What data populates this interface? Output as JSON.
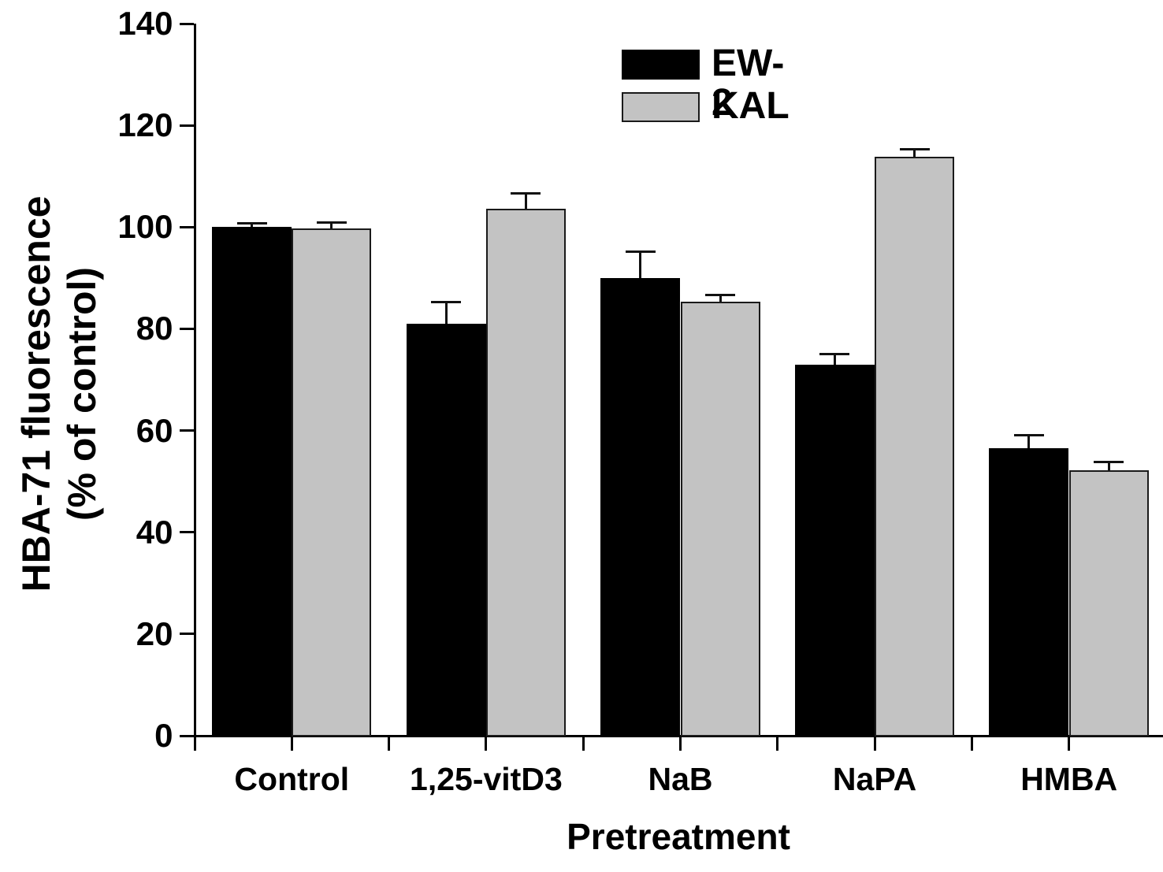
{
  "chart_data": {
    "type": "bar",
    "title": "",
    "xlabel": "Pretreatment",
    "ylabel": "HBA-71 fluorescence (% of control)",
    "ylabel_lines": [
      "HBA-71 fluorescence",
      "(% of control)"
    ],
    "categories": [
      "Control",
      "1,25-vitD3",
      "NaB",
      "NaPA",
      "HMBA"
    ],
    "series": [
      {
        "name": "EW-2",
        "color": "#000000",
        "border": "#000000",
        "values": [
          100,
          81,
          90,
          73,
          56.5
        ],
        "errors_upper": [
          0.8,
          4.3,
          5.2,
          2.1,
          2.6
        ]
      },
      {
        "name": "KAL",
        "color": "#c3c3c3",
        "border": "#1a1a1a",
        "values": [
          99.8,
          103.6,
          85.3,
          113.8,
          52.2
        ],
        "errors_upper": [
          1.1,
          3.1,
          1.3,
          1.5,
          1.6
        ]
      }
    ],
    "ylim": [
      0,
      140
    ],
    "yticks": [
      0,
      20,
      40,
      60,
      80,
      100,
      120,
      140
    ],
    "grid": false,
    "error_bars": "upper-only",
    "legend_position": "top-center-inside",
    "background": "#ffffff",
    "axis_color": "#000000"
  }
}
